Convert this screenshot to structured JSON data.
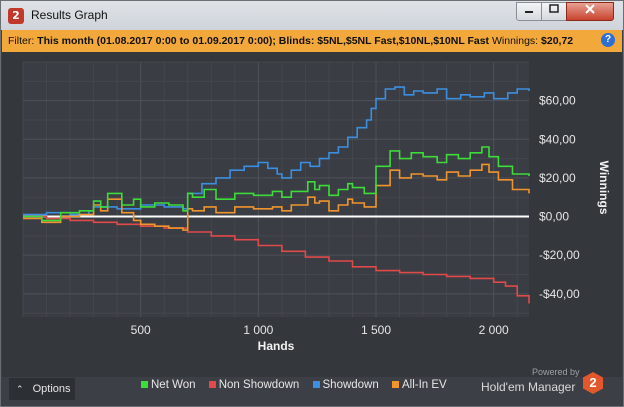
{
  "window": {
    "title": "Results Graph",
    "app_icon": "2",
    "minimize_icon": "minimize-icon",
    "maximize_icon": "maximize-icon",
    "close_icon": "close-icon"
  },
  "filter": {
    "label": "Filter:",
    "value": "This month (01.08.2017 0:00 to 01.09.2017 0:00); Blinds: $5NL,$5NL Fast,$10NL,$10NL Fast",
    "winnings_label": "Winnings:",
    "winnings_value": "$20,72",
    "help_icon": "?"
  },
  "options_label": "Options",
  "powered_by": "Powered by",
  "brand": "Hold'em Manager",
  "brand_icon": "2",
  "colors": {
    "net_won": "#3ddc3a",
    "non_showdown": "#e04a4a",
    "showdown": "#3c8fe0",
    "allin_ev": "#f0952e",
    "zero_line": "#ffffff",
    "filter_bar": "#f2a83a"
  },
  "chart_data": {
    "type": "line",
    "xlabel": "Hands",
    "ylabel": "Winnings",
    "xlim": [
      0,
      2150
    ],
    "ylim": [
      -52,
      80
    ],
    "x_ticks": [
      500,
      1000,
      1500,
      2000
    ],
    "x_tick_labels": [
      "500",
      "1 000",
      "1 500",
      "2 000"
    ],
    "y_ticks": [
      -40,
      -20,
      0,
      20,
      40,
      60
    ],
    "y_tick_labels": [
      "-$40,00",
      "-$20,00",
      "$0,00",
      "$20,00",
      "$40,00",
      "$60,00"
    ],
    "grid": true,
    "legend_position": "bottom",
    "series": [
      {
        "name": "Net Won",
        "color": "#3ddc3a",
        "x": [
          0,
          80,
          160,
          240,
          300,
          330,
          360,
          420,
          470,
          500,
          560,
          620,
          680,
          700,
          720,
          770,
          820,
          900,
          980,
          1060,
          1100,
          1140,
          1210,
          1240,
          1260,
          1300,
          1340,
          1380,
          1400,
          1450,
          1500,
          1560,
          1600,
          1650,
          1700,
          1760,
          1800,
          1850,
          1900,
          1950,
          1980,
          2020,
          2080,
          2150
        ],
        "values": [
          0,
          -2,
          2,
          3,
          8,
          5,
          12,
          6,
          9,
          5,
          7,
          6,
          3,
          12,
          10,
          14,
          9,
          12,
          11,
          13,
          10,
          13,
          18,
          14,
          16,
          11,
          14,
          17,
          15,
          12,
          26,
          34,
          30,
          33,
          31,
          28,
          32,
          30,
          33,
          36,
          31,
          26,
          22,
          21
        ]
      },
      {
        "name": "Non Showdown",
        "color": "#e04a4a",
        "x": [
          0,
          100,
          200,
          300,
          400,
          500,
          600,
          700,
          800,
          900,
          1000,
          1100,
          1200,
          1300,
          1400,
          1500,
          1600,
          1700,
          1800,
          1900,
          2000,
          2050,
          2100,
          2150
        ],
        "values": [
          0,
          -1,
          -2,
          -3,
          -4,
          -5,
          -6,
          -8,
          -10,
          -12,
          -15,
          -18,
          -21,
          -23,
          -26,
          -28,
          -29,
          -30,
          -31,
          -32,
          -34,
          -36,
          -41,
          -45
        ]
      },
      {
        "name": "Showdown",
        "color": "#3c8fe0",
        "x": [
          0,
          100,
          200,
          280,
          300,
          400,
          500,
          600,
          680,
          700,
          760,
          820,
          880,
          940,
          1000,
          1040,
          1080,
          1100,
          1140,
          1180,
          1220,
          1260,
          1300,
          1340,
          1380,
          1420,
          1460,
          1480,
          1500,
          1540,
          1580,
          1620,
          1660,
          1700,
          1760,
          1800,
          1860,
          1900,
          1960,
          2000,
          2060,
          2100,
          2150
        ],
        "values": [
          1,
          2,
          1,
          3,
          5,
          4,
          6,
          5,
          4,
          12,
          17,
          20,
          24,
          26,
          28,
          25,
          22,
          20,
          24,
          28,
          26,
          30,
          33,
          36,
          41,
          46,
          50,
          56,
          61,
          66,
          67,
          63,
          65,
          64,
          66,
          61,
          63,
          62,
          64,
          61,
          64,
          66,
          65
        ]
      },
      {
        "name": "All-In EV",
        "color": "#f0952e",
        "x": [
          0,
          80,
          160,
          240,
          300,
          330,
          360,
          420,
          470,
          500,
          560,
          620,
          680,
          700,
          720,
          770,
          820,
          900,
          980,
          1060,
          1100,
          1140,
          1210,
          1240,
          1260,
          1300,
          1340,
          1380,
          1400,
          1450,
          1500,
          1560,
          1600,
          1650,
          1700,
          1760,
          1800,
          1850,
          1900,
          1950,
          1980,
          2020,
          2080,
          2150
        ],
        "values": [
          -1,
          -3,
          0,
          1,
          6,
          3,
          9,
          2,
          -2,
          -4,
          -5,
          -6,
          -7,
          4,
          3,
          5,
          2,
          5,
          4,
          5,
          3,
          6,
          10,
          7,
          8,
          3,
          6,
          9,
          7,
          5,
          16,
          24,
          20,
          22,
          21,
          19,
          23,
          21,
          24,
          27,
          23,
          19,
          14,
          12
        ]
      }
    ]
  }
}
